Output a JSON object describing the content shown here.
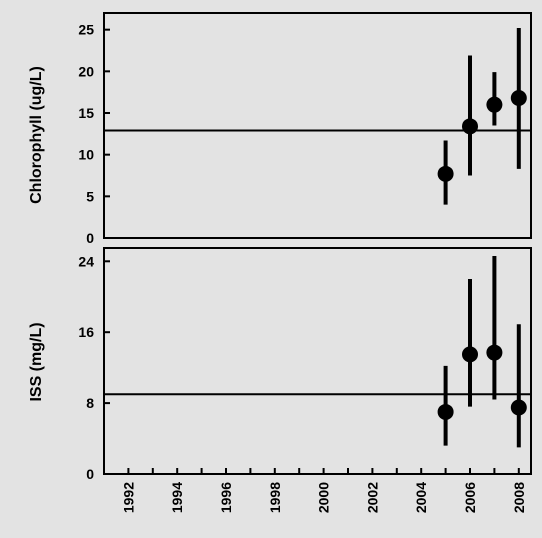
{
  "chart_data": [
    {
      "type": "scatter",
      "error_bars": true,
      "ylabel": "Chlorophyll (ug/L)",
      "ylim": [
        0,
        27
      ],
      "yticks": [
        0,
        5,
        10,
        15,
        20,
        25
      ],
      "xlim": [
        1991,
        2008.5
      ],
      "reference_line": 12.9,
      "points": [
        {
          "x": 2005,
          "y": 7.7,
          "low": 4.0,
          "high": 11.7
        },
        {
          "x": 2006,
          "y": 13.4,
          "low": 7.5,
          "high": 21.9
        },
        {
          "x": 2007,
          "y": 16.0,
          "low": 13.5,
          "high": 19.9
        },
        {
          "x": 2008,
          "y": 16.8,
          "low": 8.3,
          "high": 25.2
        }
      ]
    },
    {
      "type": "scatter",
      "error_bars": true,
      "ylabel": "ISS (mg/L)",
      "xlabel": "",
      "ylim": [
        0,
        25.5
      ],
      "yticks": [
        0,
        8,
        16,
        24
      ],
      "xlim": [
        1991,
        2008.5
      ],
      "xticks": [
        "1992",
        "1994",
        "1996",
        "1998",
        "2000",
        "2002",
        "2004",
        "2006",
        "2008"
      ],
      "reference_line": 9.0,
      "points": [
        {
          "x": 2005,
          "y": 7.0,
          "low": 3.2,
          "high": 12.2
        },
        {
          "x": 2006,
          "y": 13.5,
          "low": 7.6,
          "high": 22.0
        },
        {
          "x": 2007,
          "y": 13.7,
          "low": 8.4,
          "high": 24.6
        },
        {
          "x": 2008,
          "y": 7.5,
          "low": 3.0,
          "high": 16.9
        }
      ]
    }
  ]
}
